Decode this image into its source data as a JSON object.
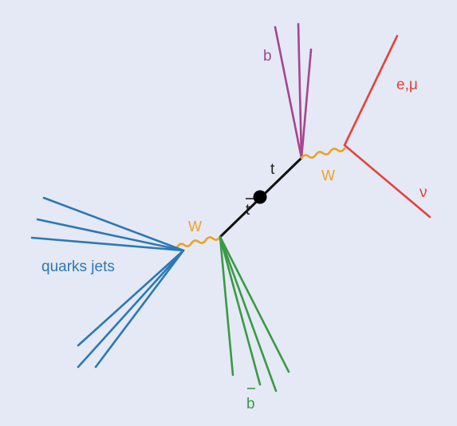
{
  "diagram": {
    "labels": {
      "b": "b",
      "lepton": "e,μ",
      "neutrino": "ν",
      "top": "t",
      "antitop_base": "t",
      "w_top": "W",
      "w_antitop": "W",
      "quark_jets": "quarks jets",
      "antib_base": "b"
    },
    "colors": {
      "background": "#e4e9f5",
      "top_line": "#111111",
      "vertex": "#000000",
      "w_boson": "#f0a020",
      "b_jet": "#a6458f",
      "lepton": "#e6413a",
      "quark_jets": "#2c78b5",
      "antib_jet": "#3a9a44"
    }
  }
}
